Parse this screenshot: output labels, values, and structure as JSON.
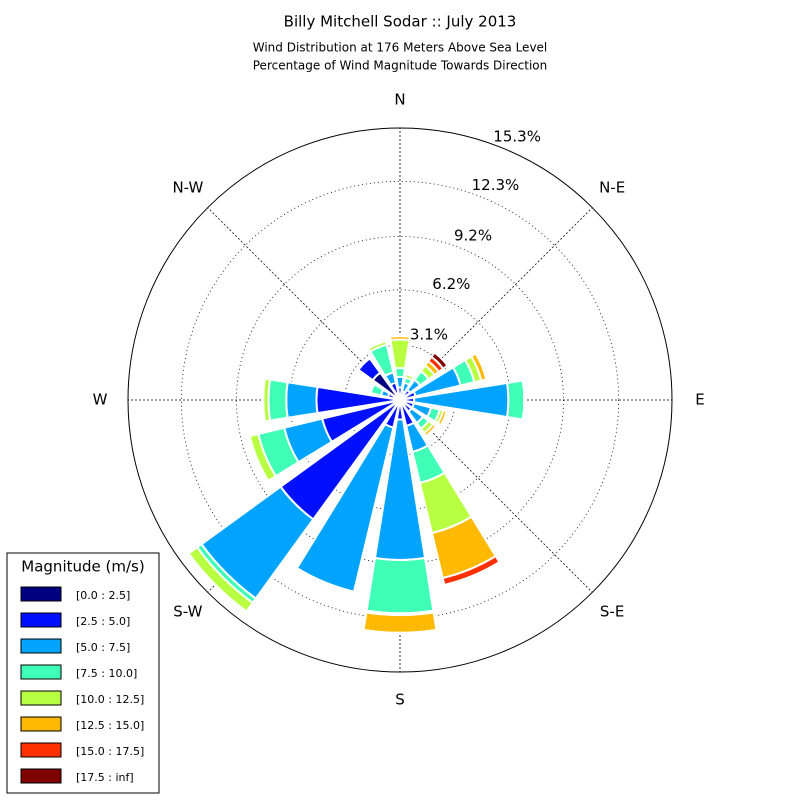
{
  "chart_data": {
    "type": "windrose",
    "title": "Billy Mitchell Sodar :: July 2013",
    "subtitle": [
      "Wind Distribution at 176 Meters Above Sea Level",
      "Percentage of Wind Magnitude Towards Direction"
    ],
    "categories": [
      "N",
      null,
      "N-E",
      null,
      "E",
      null,
      "S-E",
      null,
      "S",
      null,
      "S-W",
      null,
      "W",
      null,
      "N-W",
      null
    ],
    "ylim": [
      0,
      15.3
    ],
    "yticks": [
      {
        "value": 3.1,
        "label": "3.1%"
      },
      {
        "value": 6.2,
        "label": "6.2%"
      },
      {
        "value": 9.2,
        "label": "9.2%"
      },
      {
        "value": 12.3,
        "label": "12.3%"
      },
      {
        "value": 15.3,
        "label": "15.3%"
      }
    ],
    "grid": true,
    "legend_title": "Magnitude (m/s)",
    "legend_position": "lower-left",
    "series": [
      {
        "name": "[0.0 : 2.5]",
        "color": "#000080",
        "values": [
          0.3,
          0.2,
          0.2,
          0.3,
          0.2,
          0.2,
          0.2,
          0.2,
          0.2,
          0.2,
          0.3,
          0.3,
          0.3,
          0.3,
          1.9,
          0.4
        ]
      },
      {
        "name": "[2.5 : 5.0]",
        "color": "#0010ff",
        "values": [
          0.4,
          0.3,
          0.5,
          0.6,
          0.6,
          0.6,
          0.6,
          1.3,
          0.9,
          1.4,
          8.0,
          4.2,
          4.4,
          0.4,
          1.0,
          0.6
        ]
      },
      {
        "name": "[5.0 : 7.5]",
        "color": "#00a4ff",
        "values": [
          0.6,
          0.5,
          0.7,
          2.6,
          5.3,
          1.0,
          0.8,
          1.5,
          7.9,
          9.5,
          5.5,
          2.2,
          1.7,
          0.4,
          0,
          0.6
        ]
      },
      {
        "name": "[7.5 : 10.0]",
        "color": "#40ffb7",
        "values": [
          0.5,
          0.3,
          0.6,
          0.8,
          0.9,
          0.5,
          0.4,
          1.8,
          3.0,
          0,
          0.3,
          1.5,
          1.0,
          0.6,
          0,
          1.6
        ]
      },
      {
        "name": "[10.0 : 12.5]",
        "color": "#b7ff40",
        "values": [
          1.6,
          0.2,
          0.4,
          0.4,
          0,
          0.2,
          0.3,
          2.9,
          0.1,
          0,
          0.6,
          0.5,
          0.3,
          0,
          0,
          0.2
        ]
      },
      {
        "name": "[12.5 : 15.0]",
        "color": "#ffb900",
        "values": [
          0.2,
          0.1,
          0.3,
          0.3,
          0,
          0.2,
          0.2,
          2.6,
          1.0,
          0,
          0,
          0,
          0,
          0,
          0,
          0
        ]
      },
      {
        "name": "[15.0 : 17.5]",
        "color": "#ff3000",
        "values": [
          0,
          0.1,
          0.3,
          0,
          0,
          0,
          0,
          0.4,
          0,
          0,
          0,
          0,
          0,
          0,
          0,
          0
        ]
      },
      {
        "name": "[17.5 : inf]",
        "color": "#800000",
        "values": [
          0,
          0,
          0.3,
          0,
          0,
          0,
          0,
          0,
          0,
          0,
          0,
          0,
          0,
          0,
          0,
          0
        ]
      }
    ]
  }
}
